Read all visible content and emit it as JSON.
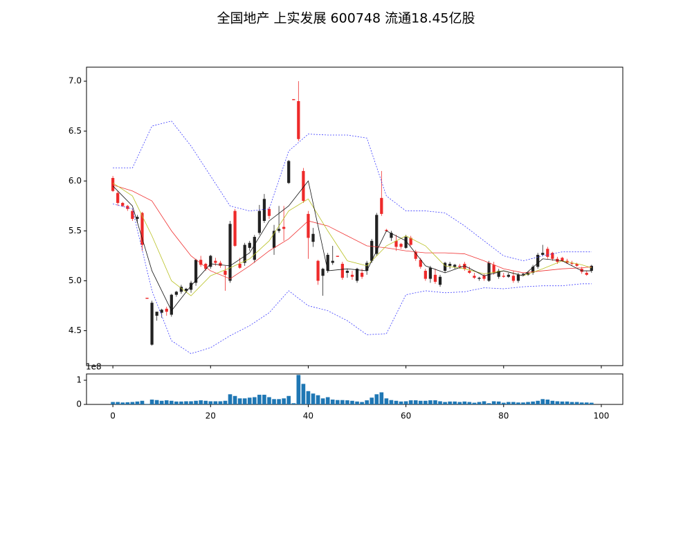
{
  "chart_data": {
    "type": "candlestick",
    "title": "全国地产 上实发展 600748 流通18.45亿股",
    "open": [
      6.03,
      5.88,
      5.78,
      5.75,
      5.7,
      5.62,
      5.68,
      4.83,
      4.36,
      4.65,
      4.68,
      4.72,
      4.66,
      4.86,
      4.89,
      4.9,
      4.91,
      4.98,
      5.21,
      5.17,
      5.14,
      5.2,
      5.18,
      5.1,
      5.0,
      5.7,
      5.17,
      5.18,
      5.33,
      5.21,
      5.48,
      5.6,
      5.72,
      5.33,
      5.5,
      5.54,
      5.98,
      6.82,
      6.8,
      6.1,
      5.67,
      5.39,
      5.2,
      5.05,
      5.1,
      5.18,
      5.25,
      5.17,
      5.08,
      5.06,
      5.0,
      5.08,
      5.1,
      5.2,
      5.27,
      5.83,
      5.51,
      5.43,
      5.4,
      5.37,
      5.33,
      5.43,
      5.29,
      5.21,
      5.1,
      5.02,
      5.06,
      4.96,
      5.1,
      5.15,
      5.14,
      5.15,
      5.17,
      5.1,
      5.05,
      5.02,
      5.05,
      5.0,
      5.16,
      5.04,
      5.05,
      5.04,
      5.05,
      5.0,
      5.06,
      5.06,
      5.08,
      5.14,
      5.26,
      5.32,
      5.28,
      5.22,
      5.23,
      5.2,
      5.18,
      5.17,
      5.12,
      5.08,
      5.1
    ],
    "high": [
      6.05,
      5.9,
      5.79,
      5.76,
      5.72,
      5.66,
      5.69,
      4.83,
      4.8,
      4.69,
      4.72,
      4.74,
      4.87,
      4.9,
      4.96,
      4.93,
      5.0,
      5.22,
      5.25,
      5.18,
      5.26,
      5.23,
      5.2,
      5.15,
      5.6,
      5.72,
      5.23,
      5.38,
      5.4,
      5.46,
      5.76,
      5.87,
      5.74,
      5.56,
      5.75,
      5.75,
      6.21,
      6.82,
      7.0,
      6.13,
      5.7,
      5.53,
      5.21,
      5.13,
      5.28,
      5.35,
      5.25,
      5.19,
      5.12,
      5.1,
      5.13,
      5.12,
      5.2,
      5.42,
      5.68,
      6.1,
      5.52,
      5.5,
      5.46,
      5.38,
      5.46,
      5.45,
      5.31,
      5.23,
      5.12,
      5.15,
      5.12,
      5.06,
      5.19,
      5.19,
      5.17,
      5.17,
      5.19,
      5.14,
      5.08,
      5.04,
      5.07,
      5.2,
      5.19,
      5.12,
      5.08,
      5.08,
      5.1,
      5.08,
      5.08,
      5.09,
      5.16,
      5.28,
      5.36,
      5.34,
      5.29,
      5.24,
      5.24,
      5.22,
      5.2,
      5.18,
      5.14,
      5.1,
      5.16
    ],
    "low": [
      5.89,
      5.75,
      5.74,
      5.7,
      5.6,
      5.58,
      5.3,
      4.82,
      4.35,
      4.6,
      4.63,
      4.65,
      4.64,
      4.84,
      4.87,
      4.88,
      4.88,
      4.95,
      5.14,
      5.1,
      5.12,
      5.15,
      5.13,
      4.9,
      4.98,
      5.34,
      5.12,
      5.15,
      5.3,
      5.18,
      5.46,
      5.58,
      5.62,
      5.26,
      5.48,
      5.4,
      5.97,
      6.81,
      6.4,
      5.78,
      5.22,
      5.34,
      4.96,
      4.85,
      5.08,
      5.16,
      5.24,
      5.01,
      5.03,
      5.01,
      4.98,
      5.02,
      5.06,
      5.18,
      5.25,
      5.65,
      5.49,
      5.4,
      5.3,
      5.32,
      5.32,
      5.35,
      5.2,
      5.12,
      5.0,
      4.98,
      4.97,
      4.94,
      5.08,
      5.12,
      5.12,
      5.12,
      5.1,
      5.07,
      5.02,
      5.0,
      5.0,
      4.99,
      5.06,
      5.02,
      5.03,
      5.03,
      4.98,
      4.98,
      5.05,
      5.05,
      5.06,
      5.12,
      5.25,
      5.22,
      5.2,
      5.17,
      5.19,
      5.17,
      5.15,
      5.14,
      5.07,
      5.05,
      5.08
    ],
    "close": [
      5.9,
      5.78,
      5.75,
      5.72,
      5.62,
      5.64,
      5.36,
      4.82,
      4.78,
      4.69,
      4.71,
      4.69,
      4.86,
      4.89,
      4.94,
      4.92,
      4.98,
      5.21,
      5.16,
      5.12,
      5.25,
      5.18,
      5.15,
      5.06,
      5.57,
      5.35,
      5.13,
      5.36,
      5.38,
      5.44,
      5.7,
      5.82,
      5.65,
      5.5,
      5.52,
      5.52,
      6.2,
      6.81,
      6.42,
      5.8,
      5.43,
      5.47,
      5.0,
      5.12,
      5.26,
      5.2,
      5.24,
      5.03,
      5.1,
      5.04,
      5.12,
      5.04,
      5.18,
      5.4,
      5.66,
      5.67,
      5.5,
      5.48,
      5.34,
      5.34,
      5.44,
      5.36,
      5.22,
      5.14,
      5.02,
      5.13,
      4.99,
      5.04,
      5.18,
      5.17,
      5.16,
      5.14,
      5.12,
      5.08,
      5.03,
      5.03,
      5.02,
      5.18,
      5.08,
      5.1,
      5.04,
      5.06,
      5.0,
      5.06,
      5.07,
      5.08,
      5.14,
      5.26,
      5.28,
      5.24,
      5.22,
      5.19,
      5.2,
      5.18,
      5.17,
      5.15,
      5.09,
      5.06,
      5.15
    ],
    "up_color": "#222222",
    "down_color": "#ee2a2a",
    "lines": [
      {
        "color": "#3a3aff",
        "dashed": true,
        "x": [
          0,
          4,
          8,
          12,
          16,
          20,
          24,
          28,
          32,
          36,
          40,
          44,
          48,
          52,
          56,
          60,
          64,
          68,
          72,
          76,
          80,
          84,
          88,
          92,
          96,
          98
        ],
        "values": [
          6.13,
          6.13,
          6.55,
          6.6,
          6.35,
          6.05,
          5.75,
          5.7,
          5.72,
          6.3,
          6.47,
          6.46,
          6.46,
          6.43,
          5.85,
          5.7,
          5.7,
          5.68,
          5.55,
          5.4,
          5.25,
          5.2,
          5.25,
          5.29,
          5.29,
          5.29
        ]
      },
      {
        "color": "#3a3aff",
        "dashed": true,
        "x": [
          0,
          4,
          8,
          12,
          16,
          20,
          24,
          28,
          32,
          36,
          40,
          44,
          48,
          52,
          56,
          60,
          64,
          68,
          72,
          76,
          80,
          84,
          88,
          92,
          96,
          98
        ],
        "values": [
          5.77,
          5.72,
          4.9,
          4.4,
          4.27,
          4.33,
          4.45,
          4.55,
          4.68,
          4.9,
          4.75,
          4.7,
          4.6,
          4.46,
          4.47,
          4.86,
          4.9,
          4.88,
          4.89,
          4.93,
          4.92,
          4.94,
          4.95,
          4.95,
          4.97,
          4.97
        ]
      },
      {
        "color": "#f03030",
        "dashed": false,
        "x": [
          0,
          4,
          8,
          12,
          16,
          20,
          24,
          28,
          32,
          36,
          40,
          44,
          48,
          52,
          56,
          60,
          64,
          68,
          72,
          76,
          80,
          84,
          88,
          92,
          96,
          98
        ],
        "values": [
          5.96,
          5.9,
          5.8,
          5.5,
          5.25,
          5.1,
          5.02,
          5.15,
          5.3,
          5.42,
          5.6,
          5.55,
          5.45,
          5.35,
          5.33,
          5.3,
          5.28,
          5.28,
          5.27,
          5.2,
          5.12,
          5.08,
          5.1,
          5.12,
          5.13,
          5.14
        ]
      },
      {
        "color": "#b8c020",
        "dashed": false,
        "x": [
          0,
          4,
          8,
          12,
          16,
          20,
          24,
          28,
          32,
          36,
          40,
          44,
          48,
          52,
          56,
          60,
          64,
          68,
          72,
          76,
          80,
          84,
          88,
          92,
          96,
          98
        ],
        "values": [
          5.98,
          5.85,
          5.45,
          5.0,
          4.85,
          5.05,
          5.13,
          5.22,
          5.4,
          5.7,
          5.82,
          5.5,
          5.2,
          5.15,
          5.35,
          5.45,
          5.35,
          5.15,
          5.12,
          5.07,
          5.1,
          5.05,
          5.12,
          5.2,
          5.16,
          5.13
        ]
      },
      {
        "color": "#111111",
        "dashed": false,
        "x": [
          0,
          4,
          8,
          12,
          16,
          20,
          24,
          28,
          32,
          36,
          40,
          44,
          48,
          52,
          56,
          60,
          64,
          68,
          72,
          76,
          80,
          84,
          88,
          92,
          96,
          98
        ],
        "values": [
          5.95,
          5.75,
          5.1,
          4.7,
          4.95,
          5.17,
          5.15,
          5.28,
          5.6,
          5.75,
          6.0,
          5.1,
          5.12,
          5.1,
          5.5,
          5.4,
          5.15,
          5.08,
          5.15,
          5.05,
          5.1,
          5.05,
          5.22,
          5.2,
          5.1,
          5.1
        ]
      }
    ],
    "xlim": [
      -5.4,
      104.4
    ],
    "xticks": [
      0,
      20,
      40,
      60,
      80,
      100
    ],
    "ylim": [
      4.15,
      7.14
    ],
    "yticks": [
      {
        "value": 4.5,
        "label": "4.5"
      },
      {
        "value": 5,
        "label": "5.0"
      },
      {
        "value": 5.5,
        "label": "5.5"
      },
      {
        "value": 6,
        "label": "6.0"
      },
      {
        "value": 6.5,
        "label": "6.5"
      },
      {
        "value": 7,
        "label": "7.0"
      }
    ],
    "volume": {
      "color": "#1f77b4",
      "offset_label": "1e8",
      "ylim": [
        0,
        1.26
      ],
      "yticks": [
        0,
        1
      ],
      "values": [
        0.1,
        0.1,
        0.08,
        0.09,
        0.1,
        0.12,
        0.15,
        0.02,
        0.2,
        0.18,
        0.15,
        0.17,
        0.15,
        0.12,
        0.12,
        0.13,
        0.13,
        0.15,
        0.17,
        0.15,
        0.13,
        0.13,
        0.13,
        0.15,
        0.42,
        0.35,
        0.25,
        0.25,
        0.28,
        0.3,
        0.4,
        0.4,
        0.3,
        0.22,
        0.22,
        0.25,
        0.35,
        0.05,
        1.22,
        0.85,
        0.55,
        0.45,
        0.38,
        0.25,
        0.3,
        0.2,
        0.18,
        0.18,
        0.17,
        0.15,
        0.12,
        0.1,
        0.17,
        0.28,
        0.42,
        0.5,
        0.25,
        0.18,
        0.15,
        0.12,
        0.13,
        0.17,
        0.17,
        0.15,
        0.15,
        0.17,
        0.17,
        0.13,
        0.1,
        0.12,
        0.12,
        0.1,
        0.12,
        0.1,
        0.07,
        0.1,
        0.13,
        0.05,
        0.13,
        0.12,
        0.07,
        0.1,
        0.1,
        0.08,
        0.08,
        0.1,
        0.12,
        0.15,
        0.22,
        0.2,
        0.15,
        0.13,
        0.12,
        0.12,
        0.1,
        0.1,
        0.08,
        0.08,
        0.07
      ]
    }
  }
}
